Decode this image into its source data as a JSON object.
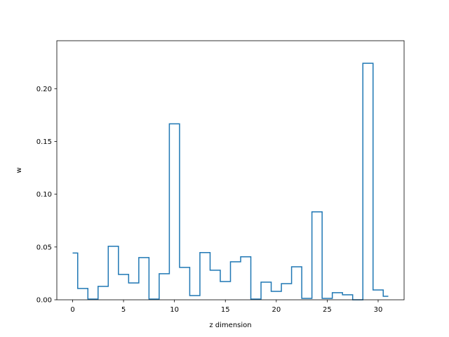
{
  "chart_data": {
    "type": "line",
    "style": "step-mid",
    "title": "",
    "xlabel": "z dimension",
    "ylabel": "w",
    "xlim": [
      -1.55,
      32.55
    ],
    "ylim": [
      0,
      0.2454
    ],
    "grid": false,
    "legend": "none",
    "x_ticks": [
      0,
      5,
      10,
      15,
      20,
      25,
      30
    ],
    "x_tick_labels": [
      "0",
      "5",
      "10",
      "15",
      "20",
      "25",
      "30"
    ],
    "y_ticks": [
      0.0,
      0.05,
      0.1,
      0.15,
      0.2
    ],
    "y_tick_labels": [
      "0.00",
      "0.05",
      "0.10",
      "0.15",
      "0.20"
    ],
    "series": [
      {
        "color": "#1f77b4",
        "x": [
          0,
          1,
          2,
          3,
          4,
          5,
          6,
          7,
          8,
          9,
          10,
          11,
          12,
          13,
          14,
          15,
          16,
          17,
          18,
          19,
          20,
          21,
          22,
          23,
          24,
          25,
          26,
          27,
          28,
          29,
          30,
          31
        ],
        "values": [
          0.0443,
          0.0107,
          0.0007,
          0.0127,
          0.0507,
          0.024,
          0.016,
          0.04,
          0.0007,
          0.0247,
          0.1667,
          0.0307,
          0.004,
          0.0447,
          0.028,
          0.0173,
          0.036,
          0.0407,
          0.0007,
          0.0167,
          0.008,
          0.0153,
          0.0313,
          0.0013,
          0.0833,
          0.0013,
          0.0067,
          0.0047,
          0.0,
          0.224,
          0.0093,
          0.0033
        ]
      }
    ]
  }
}
